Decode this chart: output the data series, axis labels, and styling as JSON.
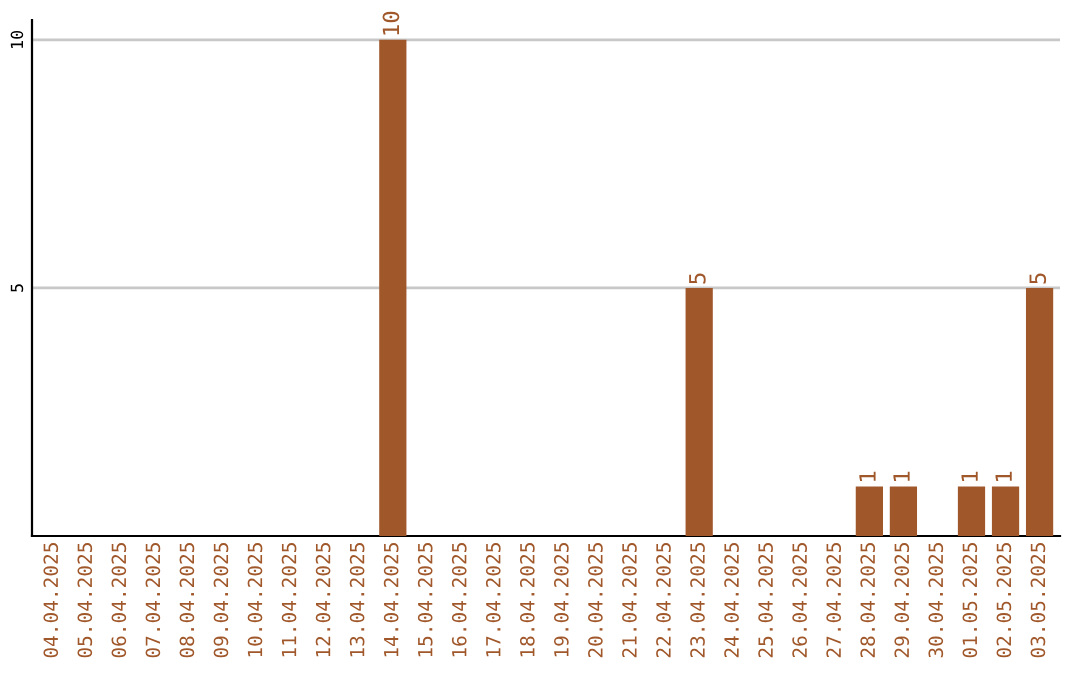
{
  "chart_data": {
    "type": "bar",
    "categories": [
      "04.04.2025",
      "05.04.2025",
      "06.04.2025",
      "07.04.2025",
      "08.04.2025",
      "09.04.2025",
      "10.04.2025",
      "11.04.2025",
      "12.04.2025",
      "13.04.2025",
      "14.04.2025",
      "15.04.2025",
      "16.04.2025",
      "17.04.2025",
      "18.04.2025",
      "19.04.2025",
      "20.04.2025",
      "21.04.2025",
      "22.04.2025",
      "23.04.2025",
      "24.04.2025",
      "25.04.2025",
      "26.04.2025",
      "27.04.2025",
      "28.04.2025",
      "29.04.2025",
      "30.04.2025",
      "01.05.2025",
      "02.05.2025",
      "03.05.2025"
    ],
    "values": [
      0,
      0,
      0,
      0,
      0,
      0,
      0,
      0,
      0,
      0,
      10,
      0,
      0,
      0,
      0,
      0,
      0,
      0,
      0,
      5,
      0,
      0,
      0,
      0,
      1,
      1,
      0,
      1,
      1,
      5
    ],
    "value_labels": [
      null,
      null,
      null,
      null,
      null,
      null,
      null,
      null,
      null,
      null,
      "10",
      null,
      null,
      null,
      null,
      null,
      null,
      null,
      null,
      "5",
      null,
      null,
      null,
      null,
      "1",
      "1",
      null,
      "1",
      "1",
      "5"
    ],
    "color": "#a0572a",
    "ylim": [
      0,
      10.4
    ],
    "yticks": [
      5,
      10
    ],
    "grid": "y"
  }
}
